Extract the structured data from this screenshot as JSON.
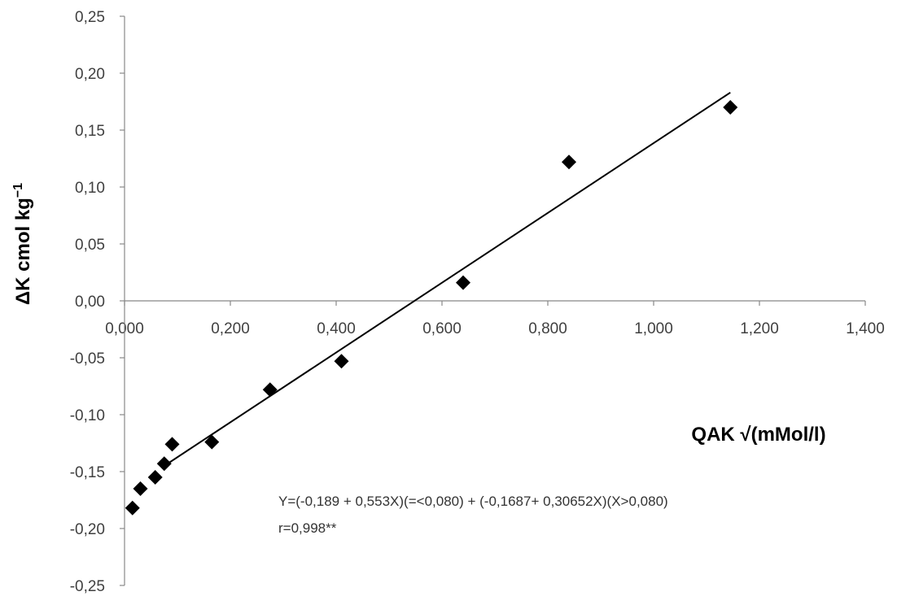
{
  "chart_data": {
    "type": "scatter",
    "title": "",
    "xlabel": "QAK √(mMol/l)",
    "ylabel_main": "ΔK cmol kg",
    "ylabel_sup": "−1",
    "xlim": [
      0,
      1.4
    ],
    "ylim": [
      -0.25,
      0.25
    ],
    "x_ticks": [
      0,
      0.2,
      0.4,
      0.6,
      0.8,
      1.0,
      1.2,
      1.4
    ],
    "x_tick_labels": [
      "0,000",
      "0,200",
      "0,400",
      "0,600",
      "0,800",
      "1,000",
      "1,200",
      "1,400"
    ],
    "y_ticks": [
      0.25,
      0.2,
      0.15,
      0.1,
      0.05,
      0,
      -0.05,
      -0.1,
      -0.15,
      -0.2,
      -0.25
    ],
    "y_tick_labels": [
      "0,25",
      "0,20",
      "0,15",
      "0,10",
      "0,05",
      "0,00",
      "-0,05",
      "-0,10",
      "-0,15",
      "-0,20",
      "-0,25"
    ],
    "grid": false,
    "legend": "none",
    "marker": "diamond",
    "marker_color": "#000000",
    "points": [
      {
        "x": 0.015,
        "y": -0.182
      },
      {
        "x": 0.03,
        "y": -0.165
      },
      {
        "x": 0.058,
        "y": -0.155
      },
      {
        "x": 0.075,
        "y": -0.143
      },
      {
        "x": 0.09,
        "y": -0.126
      },
      {
        "x": 0.165,
        "y": -0.124
      },
      {
        "x": 0.275,
        "y": -0.078
      },
      {
        "x": 0.41,
        "y": -0.053
      },
      {
        "x": 0.64,
        "y": 0.016
      },
      {
        "x": 0.84,
        "y": 0.122
      },
      {
        "x": 1.145,
        "y": 0.17
      }
    ],
    "fit_line": [
      {
        "x": 0.075,
        "y": -0.145
      },
      {
        "x": 1.145,
        "y": 0.183
      }
    ],
    "annotations": [
      "Y=(-0,189 + 0,553X)(=<0,080) + (-0,1687+ 0,30652X)(X>0,080)",
      "r=0,998**"
    ]
  }
}
